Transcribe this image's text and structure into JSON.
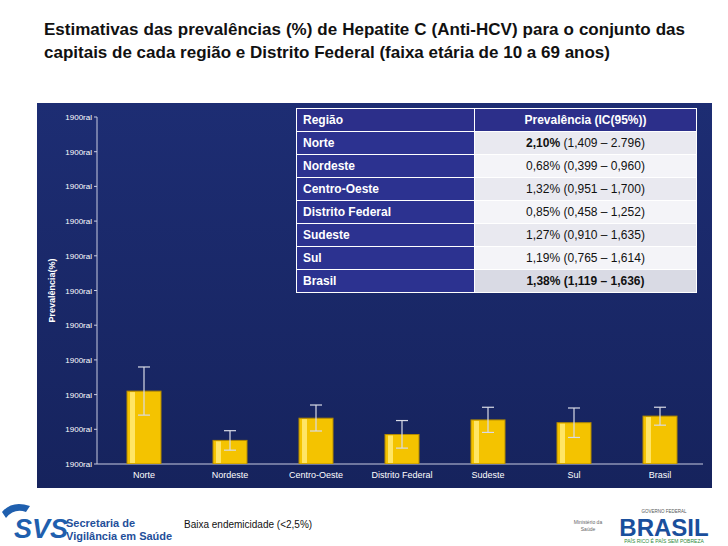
{
  "chart_data": {
    "type": "bar",
    "title": "Estimativas das prevalências (%) de Hepatite C (Anti-HCV) para o conjunto das capitais de cada região e Distrito Federal (faixa etária de 10 a 69 anos)",
    "y_label": "Prevalência(%)",
    "categories": [
      "Norte",
      "Nordeste",
      "Centro-Oeste",
      "Distrito Federal",
      "Sudeste",
      "Sul",
      "Brasil"
    ],
    "values": [
      2.1,
      0.68,
      1.32,
      0.85,
      1.27,
      1.19,
      1.38
    ],
    "ci_low": [
      1.409,
      0.399,
      0.951,
      0.458,
      0.91,
      0.765,
      1.119
    ],
    "ci_high": [
      2.796,
      0.96,
      1.7,
      1.252,
      1.635,
      1.614,
      1.636
    ],
    "color": "#f4c300",
    "ylim": [
      0,
      10
    ],
    "yticks": [
      {
        "value": 0,
        "label": "1900ral"
      },
      {
        "value": 1,
        "label": "1900ral"
      },
      {
        "value": 2,
        "label": "1900ral"
      },
      {
        "value": 3,
        "label": "1900ral"
      },
      {
        "value": 4,
        "label": "1900ral"
      },
      {
        "value": 5,
        "label": "1900ral"
      },
      {
        "value": 6,
        "label": "1900ral"
      },
      {
        "value": 7,
        "label": "1900ral"
      },
      {
        "value": 8,
        "label": "1900ral"
      },
      {
        "value": 9,
        "label": "1900ral"
      },
      {
        "value": 10,
        "label": "1900ral"
      }
    ],
    "grid": false,
    "data_labels": false
  },
  "table": {
    "columns": [
      "Região",
      "Prevalência (IC(95%))"
    ],
    "rows": [
      {
        "region": "Norte",
        "prevalence": "2,10%",
        "ci": "(1,409 – 2.796)"
      },
      {
        "region": "Nordeste",
        "prevalence": "0,68%",
        "ci": "(0,399 – 0,960)"
      },
      {
        "region": "Centro-Oeste",
        "prevalence": "1,32%",
        "ci": "(0,951 – 1,700)"
      },
      {
        "region": "Distrito Federal",
        "prevalence": "0,85%",
        "ci": "(0,458 – 1,252)"
      },
      {
        "region": "Sudeste",
        "prevalence": "1,27%",
        "ci": "(0,910 – 1,635)"
      },
      {
        "region": "Sul",
        "prevalence": "1,19%",
        "ci": "(0,765 – 1,614)"
      },
      {
        "region": "Brasil",
        "prevalence": "1,38%",
        "ci": "(1,119 – 1,636)"
      }
    ]
  },
  "footer": {
    "note": "Baixa endemicidade (<2,5%)",
    "svs_logo": "SVS",
    "svs_name": [
      "Secretaria de",
      "Vigilância em Saúde"
    ],
    "ministry": [
      "Ministério da",
      "Saúde"
    ],
    "brasil_top": "GOVERNO FEDERAL",
    "brasil": "BRASIL",
    "brasil_slogan": "PAÍS RICO É PAÍS SEM POBREZA"
  }
}
